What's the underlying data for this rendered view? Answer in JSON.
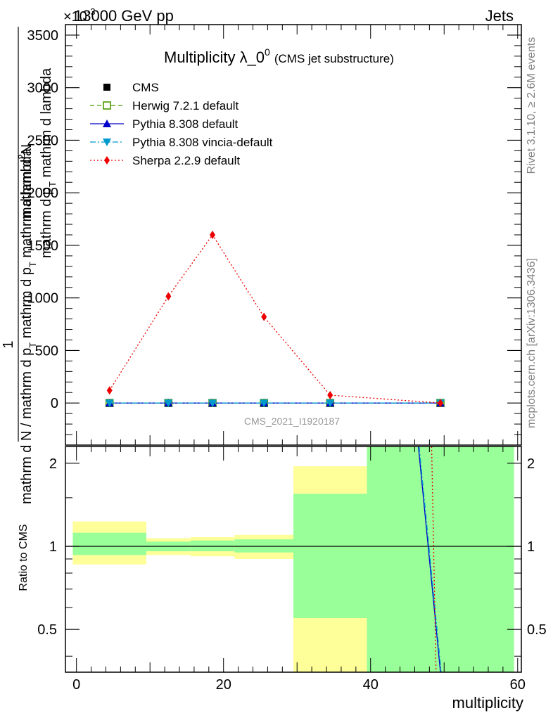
{
  "header": {
    "left": "13000 GeV pp",
    "right": "Jets",
    "exponent": "×10",
    "exponent_power": "-3"
  },
  "side_labels": {
    "rivet": "Rivet 3.1.10, ≥ 2.6M events",
    "mcplots": "mcplots.cern.ch [arXiv:1306.3436]"
  },
  "chart_data": {
    "type": "line",
    "title": "Multiplicity λ_0",
    "title_sup": "0",
    "title_suffix": "(CMS jet substructure)",
    "watermark": "CMS_2021_I1920187",
    "xlabel": "multiplicity",
    "ylabel": {
      "numerator": "mathrm d",
      "numerator_sup": "2",
      "numerator_tail": "N",
      "over": "mathrm d p",
      "over_sub": "T",
      "over_tail": " mathrm d lambda",
      "prefix": "1",
      "denominator": "mathrm d N / mathrm d p",
      "denominator_sub": "T",
      "denominator_tail": " mathrm d p",
      "denominator_tail_sub": "T",
      "denominator_end": " mathrm d lambda"
    },
    "ratio_ylabel": "Ratio to CMS",
    "xlim": [
      -1.5,
      60.5
    ],
    "ylim": [
      -400,
      3600
    ],
    "ratio_ylim": [
      0.35,
      2.3
    ],
    "x_ticks": [
      0,
      20,
      40,
      60
    ],
    "y_ticks": [
      0,
      500,
      1000,
      1500,
      2000,
      2500,
      3000,
      3500
    ],
    "ratio_ticks": [
      0.5,
      1,
      2
    ],
    "bins": [
      {
        "lo": -0.5,
        "hi": 9.5
      },
      {
        "lo": 9.5,
        "hi": 15.5
      },
      {
        "lo": 15.5,
        "hi": 21.5
      },
      {
        "lo": 21.5,
        "hi": 29.5
      },
      {
        "lo": 29.5,
        "hi": 39.5
      },
      {
        "lo": 39.5,
        "hi": 59.5
      }
    ],
    "band_yellow": [
      [
        0.86,
        1.23
      ],
      [
        0.93,
        1.07
      ],
      [
        0.92,
        1.08
      ],
      [
        0.9,
        1.1
      ],
      [
        0.33,
        1.95
      ],
      [
        0.33,
        2.3
      ]
    ],
    "band_green": [
      [
        0.93,
        1.12
      ],
      [
        0.96,
        1.04
      ],
      [
        0.96,
        1.05
      ],
      [
        0.95,
        1.06
      ],
      [
        0.55,
        1.55
      ],
      [
        0.33,
        2.3
      ]
    ],
    "series": [
      {
        "name": "CMS",
        "color": "#000000",
        "marker": "square-filled",
        "line": "none",
        "x": [
          4.5,
          12.5,
          18.5,
          25.5,
          34.5,
          49.5
        ],
        "y": [
          0,
          0,
          0,
          0,
          0,
          0
        ]
      },
      {
        "name": "Herwig 7.2.1 default",
        "color": "#4a9a00",
        "marker": "square-open",
        "line": "dashed",
        "x": [
          4.5,
          12.5,
          18.5,
          25.5,
          34.5,
          49.5
        ],
        "y": [
          0,
          0,
          0,
          0,
          0,
          0
        ]
      },
      {
        "name": "Pythia 8.308 default",
        "color": "#0000cc",
        "marker": "triangle-up",
        "line": "solid",
        "x": [
          4.5,
          12.5,
          18.5,
          25.5,
          34.5,
          49.5
        ],
        "y": [
          0,
          0,
          0,
          0,
          0,
          0
        ]
      },
      {
        "name": "Pythia 8.308 vincia-default",
        "color": "#0099cc",
        "marker": "triangle-down",
        "line": "dashdot",
        "x": [
          4.5,
          12.5,
          18.5,
          25.5,
          34.5,
          49.5
        ],
        "y": [
          0,
          0,
          0,
          0,
          0,
          0
        ]
      },
      {
        "name": "Sherpa 2.2.9 default",
        "color": "#ee0000",
        "marker": "diamond",
        "line": "dotted",
        "x": [
          4.5,
          12.5,
          18.5,
          25.5,
          34.5,
          49.5
        ],
        "y": [
          120,
          1015,
          1600,
          820,
          75,
          0
        ]
      }
    ],
    "ratio_lines": [
      {
        "name": "Pythia 8.308 default",
        "color": "#0000cc",
        "line": "solid",
        "x": [
          46.5,
          49.5
        ],
        "y": [
          2.3,
          0.35
        ]
      },
      {
        "name": "Pythia 8.308 vincia-default",
        "color": "#0099cc",
        "line": "dashdot",
        "x": [
          46.6,
          49.6
        ],
        "y": [
          2.3,
          0.35
        ]
      },
      {
        "name": "Sherpa 2.2.9 default",
        "color": "#ee0000",
        "line": "dotted",
        "x": [
          48.3,
          48.9
        ],
        "y": [
          2.3,
          0.35
        ]
      }
    ]
  }
}
